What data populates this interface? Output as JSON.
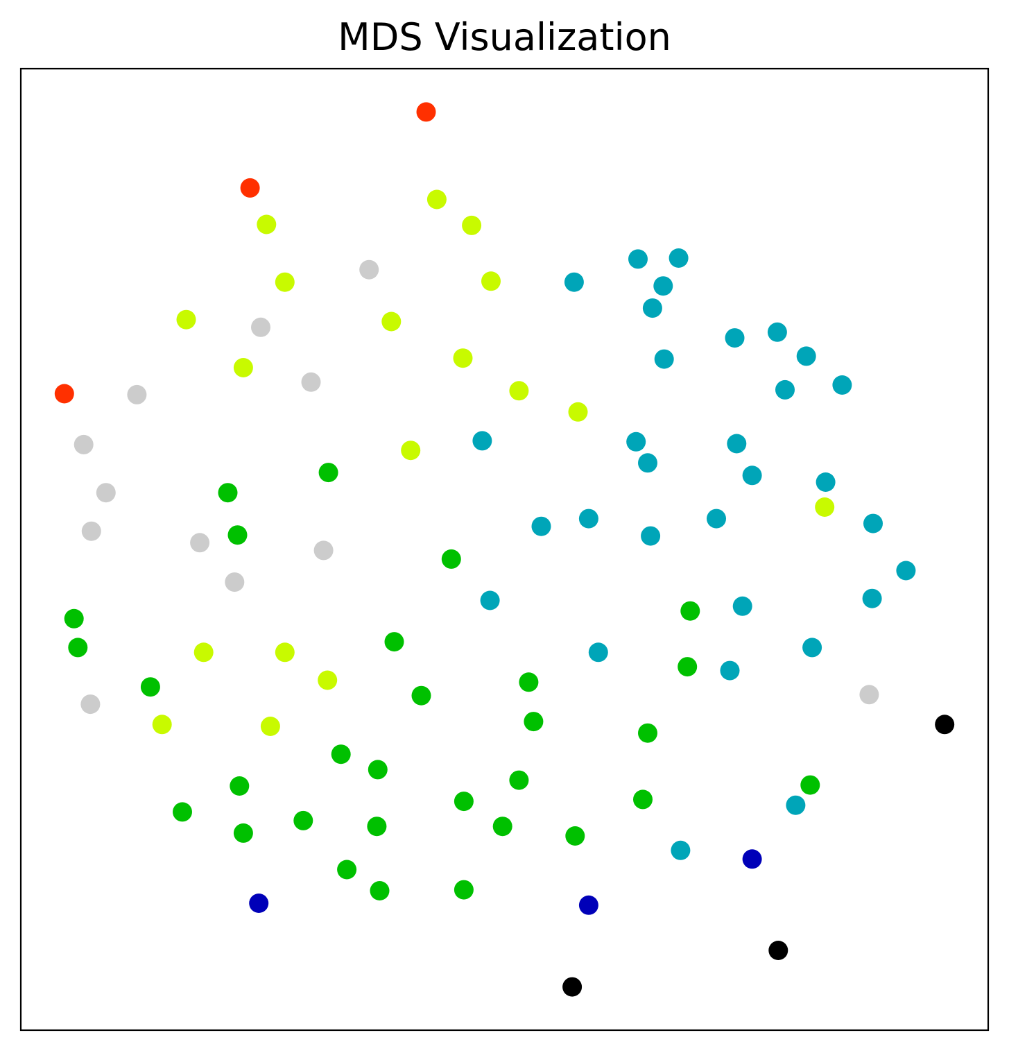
{
  "chart_data": {
    "type": "scatter",
    "title": "MDS Visualization",
    "xlabel": "",
    "ylabel": "",
    "grid": false,
    "xticks": [],
    "yticks": [],
    "xlim": [
      0,
      1000
    ],
    "ylim": [
      0,
      1000
    ],
    "series": [
      {
        "color": "#ff3000",
        "points": [
          [
            419,
            955
          ],
          [
            237,
            876
          ],
          [
            45,
            662
          ]
        ]
      },
      {
        "color": "#c8fa00",
        "points": [
          [
            430,
            864
          ],
          [
            466,
            837
          ],
          [
            254,
            838
          ],
          [
            273,
            778
          ],
          [
            171,
            739
          ],
          [
            383,
            737
          ],
          [
            486,
            779
          ],
          [
            230,
            689
          ],
          [
            457,
            699
          ],
          [
            515,
            665
          ],
          [
            576,
            643
          ],
          [
            403,
            603
          ],
          [
            831,
            544
          ],
          [
            189,
            393
          ],
          [
            273,
            393
          ],
          [
            317,
            364
          ],
          [
            146,
            318
          ],
          [
            258,
            316
          ]
        ]
      },
      {
        "color": "#cccccc",
        "points": [
          [
            360,
            791
          ],
          [
            248,
            731
          ],
          [
            300,
            674
          ],
          [
            120,
            661
          ],
          [
            65,
            609
          ],
          [
            88,
            559
          ],
          [
            73,
            519
          ],
          [
            185,
            507
          ],
          [
            313,
            499
          ],
          [
            221,
            466
          ],
          [
            72,
            339
          ],
          [
            877,
            349
          ]
        ]
      },
      {
        "color": "#00a5b8",
        "points": [
          [
            638,
            802
          ],
          [
            680,
            803
          ],
          [
            572,
            778
          ],
          [
            664,
            774
          ],
          [
            653,
            751
          ],
          [
            738,
            720
          ],
          [
            782,
            726
          ],
          [
            812,
            701
          ],
          [
            665,
            698
          ],
          [
            790,
            666
          ],
          [
            849,
            671
          ],
          [
            477,
            613
          ],
          [
            636,
            612
          ],
          [
            648,
            590
          ],
          [
            740,
            610
          ],
          [
            756,
            577
          ],
          [
            832,
            570
          ],
          [
            587,
            532
          ],
          [
            538,
            524
          ],
          [
            719,
            532
          ],
          [
            881,
            527
          ],
          [
            651,
            514
          ],
          [
            915,
            478
          ],
          [
            880,
            449
          ],
          [
            485,
            447
          ],
          [
            746,
            441
          ],
          [
            597,
            393
          ],
          [
            818,
            398
          ],
          [
            733,
            374
          ],
          [
            801,
            234
          ],
          [
            682,
            187
          ]
        ]
      },
      {
        "color": "#00c000",
        "points": [
          [
            318,
            580
          ],
          [
            214,
            559
          ],
          [
            224,
            515
          ],
          [
            445,
            490
          ],
          [
            55,
            428
          ],
          [
            59,
            398
          ],
          [
            386,
            404
          ],
          [
            692,
            436
          ],
          [
            134,
            357
          ],
          [
            414,
            348
          ],
          [
            525,
            362
          ],
          [
            689,
            378
          ],
          [
            530,
            321
          ],
          [
            648,
            309
          ],
          [
            331,
            287
          ],
          [
            369,
            271
          ],
          [
            515,
            260
          ],
          [
            226,
            254
          ],
          [
            167,
            227
          ],
          [
            458,
            238
          ],
          [
            643,
            240
          ],
          [
            816,
            255
          ],
          [
            292,
            218
          ],
          [
            368,
            212
          ],
          [
            498,
            212
          ],
          [
            573,
            202
          ],
          [
            230,
            205
          ],
          [
            337,
            167
          ],
          [
            371,
            145
          ],
          [
            458,
            146
          ]
        ]
      },
      {
        "color": "#0000b8",
        "points": [
          [
            756,
            178
          ],
          [
            587,
            130
          ],
          [
            246,
            132
          ]
        ]
      },
      {
        "color": "#000000",
        "points": [
          [
            955,
            318
          ],
          [
            783,
            83
          ],
          [
            570,
            45
          ]
        ]
      }
    ]
  }
}
